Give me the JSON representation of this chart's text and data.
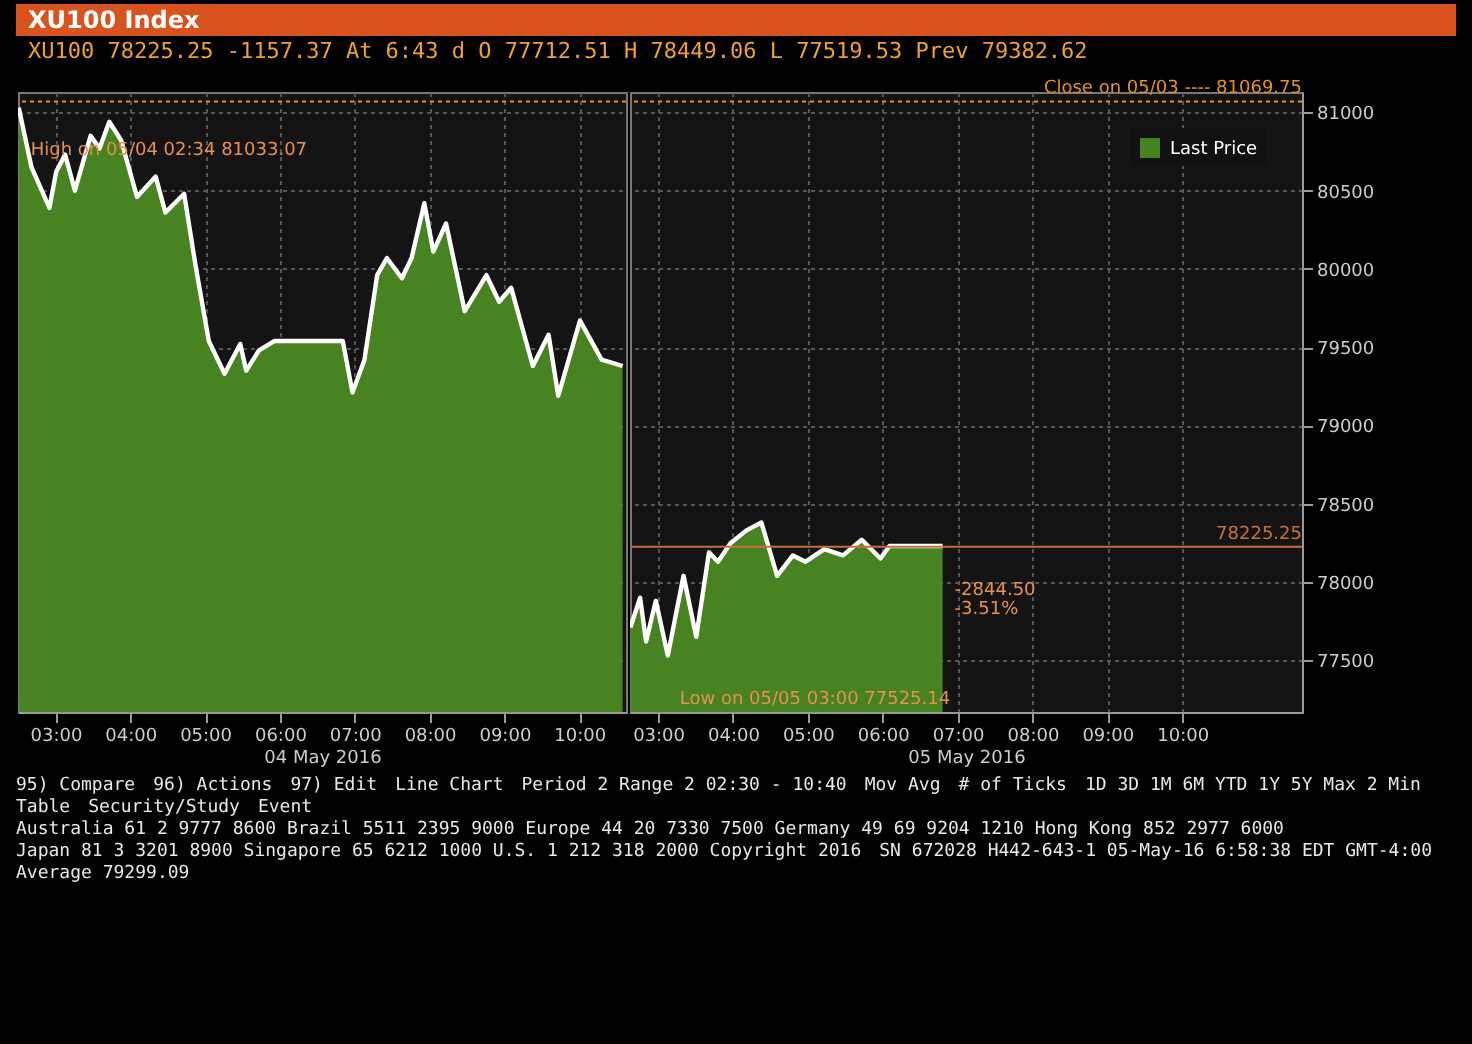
{
  "chart_data": [
    {
      "type": "area",
      "title": "XU100 Index",
      "subtitle": "XU100 78225.25 -1157.37 At 6:43 d O 77712.51 H 78449.06 L 77519.53 Prev 79382.62",
      "x": [
        2.51,
        2.68,
        2.92,
        3.01,
        3.13,
        3.26,
        3.47,
        3.59,
        3.72,
        3.88,
        4.09,
        4.34,
        4.47,
        4.72,
        4.88,
        5.05,
        5.26,
        5.47,
        5.55,
        5.72,
        5.93,
        6.84,
        6.97,
        7.13,
        7.3,
        7.43,
        7.63,
        7.76,
        7.93,
        8.05,
        8.22,
        8.47,
        8.76,
        8.93,
        9.09,
        9.38,
        9.59,
        9.72,
        10.01,
        10.3,
        10.58
      ],
      "series": [
        {
          "color": "#4a8a22",
          "values": [
            81030,
            80650,
            80390,
            80620,
            80730,
            80500,
            80850,
            80770,
            80940,
            80820,
            80460,
            80590,
            80360,
            80480,
            80000,
            79540,
            79330,
            79520,
            79350,
            79480,
            79540,
            79540,
            79210,
            79420,
            79960,
            80070,
            79940,
            80070,
            80420,
            80110,
            80290,
            79730,
            79960,
            79790,
            79880,
            79380,
            79580,
            79190,
            79670,
            79420,
            79380
          ]
        }
      ],
      "xlim": [
        2.5,
        10.625
      ],
      "xticks": [
        {
          "value": 3,
          "label": "03:00"
        },
        {
          "value": 4,
          "label": "04:00"
        },
        {
          "value": 5,
          "label": "05:00"
        },
        {
          "value": 6,
          "label": "06:00"
        },
        {
          "value": 7,
          "label": "07:00"
        },
        {
          "value": 8,
          "label": "08:00"
        },
        {
          "value": 9,
          "label": "09:00"
        },
        {
          "value": 10,
          "label": "10:00"
        }
      ],
      "xlabel": "04 May 2016",
      "ylim": [
        77170,
        81130
      ],
      "yticks": [
        77500,
        78000,
        78500,
        79000,
        79500,
        80000,
        80500,
        81000
      ],
      "tick_labels": "x",
      "grid": true,
      "legend": false,
      "marker": "none",
      "line_style": "solid",
      "ref_lines": [
        {
          "axis": "y",
          "value": 81069.75,
          "label": null,
          "color": "#e8901e",
          "line_style": "dotted"
        }
      ],
      "annotations": [
        {
          "text": "High on 05/04 02:34 81033.07",
          "x": 2.51,
          "y": 81033.07
        },
        "95) Compare",
        "96) Actions",
        "97) Edit",
        "Line Chart",
        "Period 2 Range 2 02:30 - 10:40",
        "Mov Avg",
        "# of Ticks",
        "1D 3D 1M 6M YTD 1Y 5Y Max 2 Min",
        "Table",
        "Security/Study",
        "Event",
        "Australia 61 2 9777 8600 Brazil 5511 2395 9000 Europe 44 20 7330 7500 Germany 49 69 9204 1210 Hong Kong 852 2977 6000",
        "Japan 81 3 3201 8900 Singapore 65 6212 1000 U.S. 1 212 318 2000 Copyright 2016",
        "SN 672028 H442-643-1 05-May-16 6:58:38 EDT GMT-4:00"
      ]
    },
    {
      "type": "area",
      "x": [
        2.63,
        2.76,
        2.84,
        2.97,
        3.13,
        3.34,
        3.51,
        3.68,
        3.8,
        3.97,
        4.18,
        4.38,
        4.59,
        4.8,
        4.97,
        5.22,
        5.47,
        5.72,
        5.97,
        6.09,
        6.8
      ],
      "series": [
        {
          "name": "Last Price",
          "color": "#4a8a22",
          "values": [
            77710,
            77900,
            77620,
            77880,
            77530,
            78040,
            77650,
            78190,
            78130,
            78250,
            78330,
            78380,
            78040,
            78170,
            78130,
            78210,
            78170,
            78270,
            78150,
            78230,
            78230
          ]
        }
      ],
      "xlim": [
        2.625,
        11.6
      ],
      "xticks": [
        {
          "value": 3,
          "label": "03:00"
        },
        {
          "value": 4,
          "label": "04:00"
        },
        {
          "value": 5,
          "label": "05:00"
        },
        {
          "value": 6,
          "label": "06:00"
        },
        {
          "value": 7,
          "label": "07:00"
        },
        {
          "value": 8,
          "label": "08:00"
        },
        {
          "value": 9,
          "label": "09:00"
        },
        {
          "value": 10,
          "label": "10:00"
        }
      ],
      "xlabel": "05 May 2016",
      "ylim": [
        77170,
        81130
      ],
      "yticks": [
        77500,
        78000,
        78500,
        79000,
        79500,
        80000,
        80500,
        81000
      ],
      "grid": true,
      "legend": "top right",
      "marker": "none",
      "line_style": "solid",
      "ref_lines": [
        {
          "axis": "y",
          "value": 81069.75,
          "label": "Close on 05/03 ---- 81069.75",
          "color": "#e8901e",
          "line_style": "dotted"
        },
        {
          "axis": "y",
          "value": 78225.25,
          "label": "78225.25",
          "color": "#c8703a",
          "line_style": "solid"
        }
      ],
      "annotations": [
        {
          "text": "-2844.50",
          "x": 6.8,
          "y": 78225.25
        },
        {
          "text": "-3.51%",
          "x": 6.8,
          "y": 78100
        },
        {
          "text": "Low on 05/05 03:00 77525.14",
          "x": 3.13,
          "y": 77525.14
        },
        "Average 79299.09"
      ]
    }
  ]
}
